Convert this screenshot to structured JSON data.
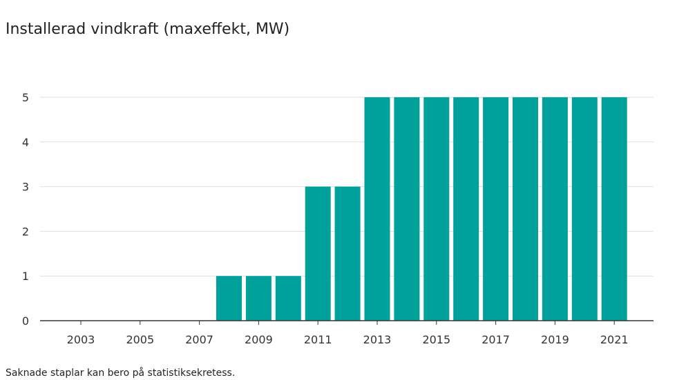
{
  "title": "Installerad vindkraft (maxeffekt, MW)",
  "footnote": "Saknade staplar kan bero på statistiksekretess.",
  "colors": {
    "bar": "#00a19a",
    "grid": "#dddddd",
    "axis": "#333333"
  },
  "chart_data": {
    "type": "bar",
    "title": "Installerad vindkraft (maxeffekt, MW)",
    "xlabel": "",
    "ylabel": "",
    "categories": [
      "2003",
      "2004",
      "2005",
      "2006",
      "2007",
      "2008",
      "2009",
      "2010",
      "2011",
      "2012",
      "2013",
      "2014",
      "2015",
      "2016",
      "2017",
      "2018",
      "2019",
      "2020",
      "2021"
    ],
    "values": [
      0,
      0,
      0,
      0,
      0,
      1,
      1,
      1,
      3,
      3,
      5,
      5,
      5,
      5,
      5,
      5,
      5,
      5,
      5
    ],
    "x_tick_labels": [
      "2003",
      "2005",
      "2007",
      "2009",
      "2011",
      "2013",
      "2015",
      "2017",
      "2019",
      "2021"
    ],
    "y_ticks": [
      0,
      1,
      2,
      3,
      4,
      5
    ],
    "ylim": [
      0,
      5
    ],
    "grid": true,
    "legend": "none"
  }
}
